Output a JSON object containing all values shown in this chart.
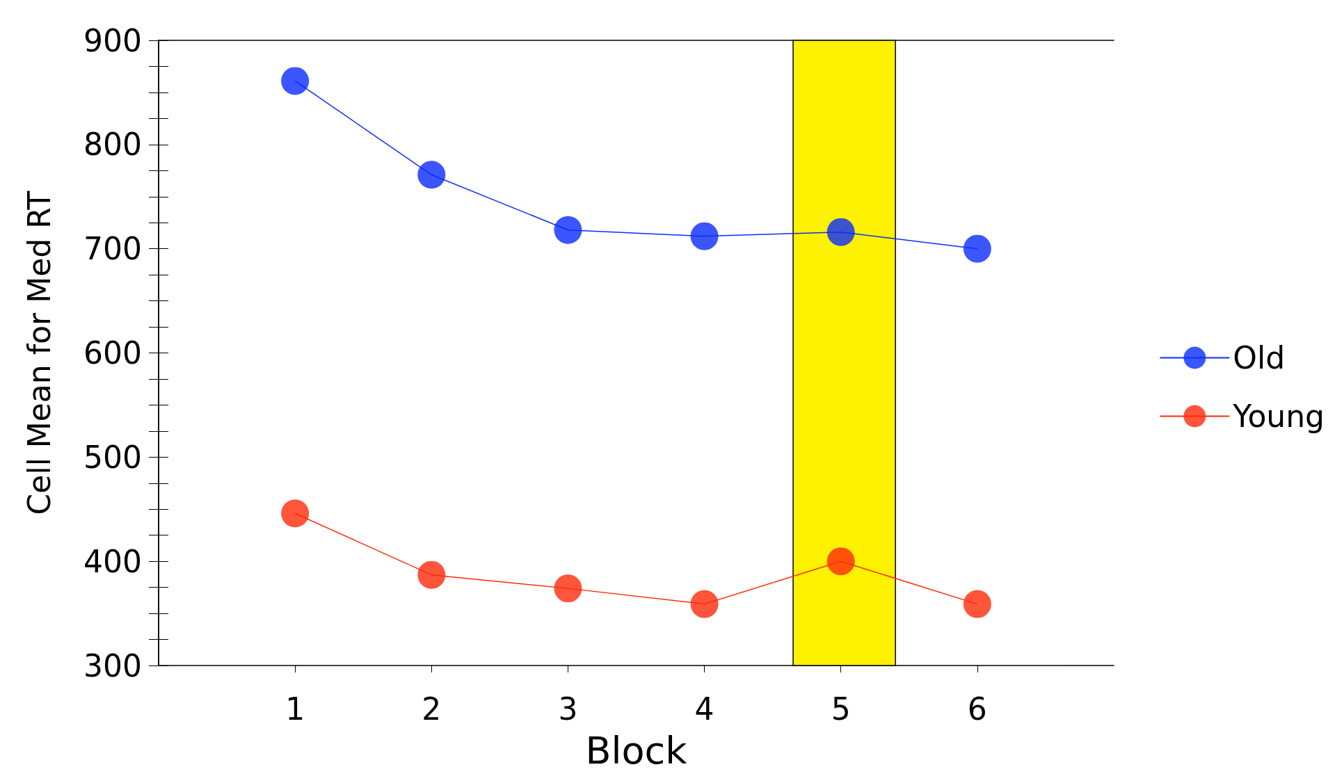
{
  "chart_data": {
    "type": "line",
    "xlabel": "Block",
    "ylabel": "Cell Mean for Med RT",
    "x": [
      1,
      2,
      3,
      4,
      5,
      6
    ],
    "series": [
      {
        "name": "Old",
        "color": "#0a2cff",
        "values": [
          861,
          771,
          718,
          712,
          716,
          700
        ]
      },
      {
        "name": "Young",
        "color": "#ff2a0a",
        "values": [
          446,
          387,
          374,
          359,
          400,
          359
        ]
      }
    ],
    "xlim": [
      0,
      7
    ],
    "xticks": [
      1,
      2,
      3,
      4,
      5,
      6
    ],
    "ylim": [
      300,
      900
    ],
    "yticks": [
      300,
      400,
      500,
      600,
      700,
      800,
      900
    ],
    "bands": [
      {
        "axis": "x",
        "from": 4.65,
        "to": 5.4,
        "color": "#fff200"
      }
    ],
    "marker": "circle",
    "legend": "right",
    "grid": false
  }
}
